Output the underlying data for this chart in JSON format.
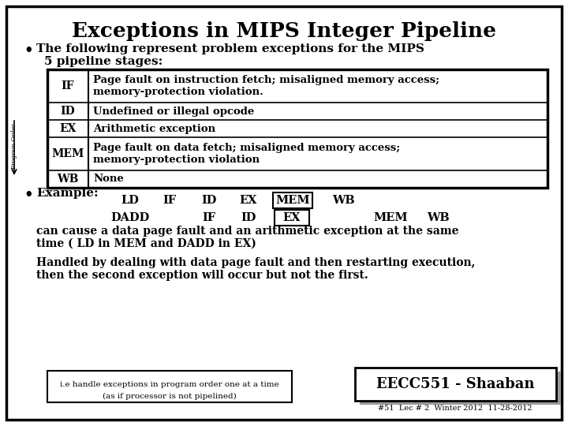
{
  "title": "Exceptions in MIPS Integer Pipeline",
  "bullet1_line1": "The following represent problem exceptions for the MIPS",
  "bullet1_line2": "5 pipeline stages:",
  "table_rows": [
    [
      "IF",
      "Page fault on instruction fetch; misaligned memory access;",
      "memory-protection violation."
    ],
    [
      "ID",
      "Undefined or illegal opcode",
      ""
    ],
    [
      "EX",
      "Arithmetic exception",
      ""
    ],
    [
      "MEM",
      "Page fault on data fetch; misaligned memory access;",
      "memory-protection violation"
    ],
    [
      "WB",
      "None",
      ""
    ]
  ],
  "text_can_cause_1": "can cause a data page fault and an arithmetic exception at the same",
  "text_can_cause_2": "time ( LD in MEM and DADD in EX)",
  "text_handled_1": "Handled by dealing with data page fault and then restarting execution,",
  "text_handled_2": "then the second exception will occur but not the first.",
  "footnote_line1": "i.e handle exceptions in program order one at a time",
  "footnote_line2": "(as if processor is not pipelined)",
  "eecc_text": "EECC551 - Shaaban",
  "bottom_text": "#51  Lec # 2  Winter 2012  11-28-2012",
  "program_order_label": "Program Order",
  "bg_color": "#ffffff",
  "border_color": "#000000"
}
